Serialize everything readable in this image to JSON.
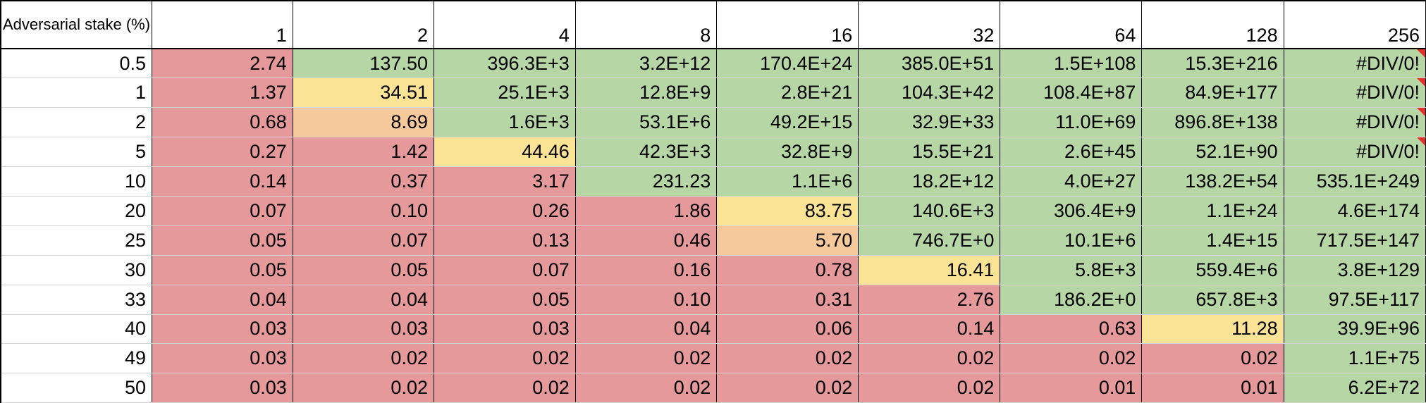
{
  "header": {
    "stake_label": "Adversarial stake (%)",
    "columns": [
      "1",
      "2",
      "4",
      "8",
      "16",
      "32",
      "64",
      "128",
      "256"
    ]
  },
  "colors": {
    "red": "#e5999a",
    "green": "#b7d6a6",
    "yellow": "#fbe396",
    "orange": "#f5c99b",
    "comment_flag": "#e2302b"
  },
  "rows": [
    {
      "stake": "0.5",
      "cells": [
        {
          "text": "2.74",
          "fill": "red"
        },
        {
          "text": "137.50",
          "fill": "green"
        },
        {
          "text": "396.3E+3",
          "fill": "green"
        },
        {
          "text": "3.2E+12",
          "fill": "green"
        },
        {
          "text": "170.4E+24",
          "fill": "green"
        },
        {
          "text": "385.0E+51",
          "fill": "green"
        },
        {
          "text": "1.5E+108",
          "fill": "green"
        },
        {
          "text": "15.3E+216",
          "fill": "green"
        },
        {
          "text": "#DIV/0!",
          "fill": "green",
          "comment": true
        }
      ]
    },
    {
      "stake": "1",
      "cells": [
        {
          "text": "1.37",
          "fill": "red"
        },
        {
          "text": "34.51",
          "fill": "yellow"
        },
        {
          "text": "25.1E+3",
          "fill": "green"
        },
        {
          "text": "12.8E+9",
          "fill": "green"
        },
        {
          "text": "2.8E+21",
          "fill": "green"
        },
        {
          "text": "104.3E+42",
          "fill": "green"
        },
        {
          "text": "108.4E+87",
          "fill": "green"
        },
        {
          "text": "84.9E+177",
          "fill": "green"
        },
        {
          "text": "#DIV/0!",
          "fill": "green",
          "comment": true
        }
      ]
    },
    {
      "stake": "2",
      "cells": [
        {
          "text": "0.68",
          "fill": "red"
        },
        {
          "text": "8.69",
          "fill": "orange"
        },
        {
          "text": "1.6E+3",
          "fill": "green"
        },
        {
          "text": "53.1E+6",
          "fill": "green"
        },
        {
          "text": "49.2E+15",
          "fill": "green"
        },
        {
          "text": "32.9E+33",
          "fill": "green"
        },
        {
          "text": "11.0E+69",
          "fill": "green"
        },
        {
          "text": "896.8E+138",
          "fill": "green"
        },
        {
          "text": "#DIV/0!",
          "fill": "green",
          "comment": true
        }
      ]
    },
    {
      "stake": "5",
      "cells": [
        {
          "text": "0.27",
          "fill": "red"
        },
        {
          "text": "1.42",
          "fill": "red"
        },
        {
          "text": "44.46",
          "fill": "yellow"
        },
        {
          "text": "42.3E+3",
          "fill": "green"
        },
        {
          "text": "32.8E+9",
          "fill": "green"
        },
        {
          "text": "15.5E+21",
          "fill": "green"
        },
        {
          "text": "2.6E+45",
          "fill": "green"
        },
        {
          "text": "52.1E+90",
          "fill": "green"
        },
        {
          "text": "#DIV/0!",
          "fill": "green",
          "comment": true
        }
      ]
    },
    {
      "stake": "10",
      "cells": [
        {
          "text": "0.14",
          "fill": "red"
        },
        {
          "text": "0.37",
          "fill": "red"
        },
        {
          "text": "3.17",
          "fill": "red"
        },
        {
          "text": "231.23",
          "fill": "green"
        },
        {
          "text": "1.1E+6",
          "fill": "green"
        },
        {
          "text": "18.2E+12",
          "fill": "green"
        },
        {
          "text": "4.0E+27",
          "fill": "green"
        },
        {
          "text": "138.2E+54",
          "fill": "green"
        },
        {
          "text": "535.1E+249",
          "fill": "green"
        }
      ]
    },
    {
      "stake": "20",
      "cells": [
        {
          "text": "0.07",
          "fill": "red"
        },
        {
          "text": "0.10",
          "fill": "red"
        },
        {
          "text": "0.26",
          "fill": "red"
        },
        {
          "text": "1.86",
          "fill": "red"
        },
        {
          "text": "83.75",
          "fill": "yellow"
        },
        {
          "text": "140.6E+3",
          "fill": "green"
        },
        {
          "text": "306.4E+9",
          "fill": "green"
        },
        {
          "text": "1.1E+24",
          "fill": "green"
        },
        {
          "text": "4.6E+174",
          "fill": "green"
        }
      ]
    },
    {
      "stake": "25",
      "cells": [
        {
          "text": "0.05",
          "fill": "red"
        },
        {
          "text": "0.07",
          "fill": "red"
        },
        {
          "text": "0.13",
          "fill": "red"
        },
        {
          "text": "0.46",
          "fill": "red"
        },
        {
          "text": "5.70",
          "fill": "orange"
        },
        {
          "text": "746.7E+0",
          "fill": "green"
        },
        {
          "text": "10.1E+6",
          "fill": "green"
        },
        {
          "text": "1.4E+15",
          "fill": "green"
        },
        {
          "text": "717.5E+147",
          "fill": "green"
        }
      ]
    },
    {
      "stake": "30",
      "cells": [
        {
          "text": "0.05",
          "fill": "red"
        },
        {
          "text": "0.05",
          "fill": "red"
        },
        {
          "text": "0.07",
          "fill": "red"
        },
        {
          "text": "0.16",
          "fill": "red"
        },
        {
          "text": "0.78",
          "fill": "red"
        },
        {
          "text": "16.41",
          "fill": "yellow"
        },
        {
          "text": "5.8E+3",
          "fill": "green"
        },
        {
          "text": "559.4E+6",
          "fill": "green"
        },
        {
          "text": "3.8E+129",
          "fill": "green"
        }
      ]
    },
    {
      "stake": "33",
      "cells": [
        {
          "text": "0.04",
          "fill": "red"
        },
        {
          "text": "0.04",
          "fill": "red"
        },
        {
          "text": "0.05",
          "fill": "red"
        },
        {
          "text": "0.10",
          "fill": "red"
        },
        {
          "text": "0.31",
          "fill": "red"
        },
        {
          "text": "2.76",
          "fill": "red"
        },
        {
          "text": "186.2E+0",
          "fill": "green"
        },
        {
          "text": "657.8E+3",
          "fill": "green"
        },
        {
          "text": "97.5E+117",
          "fill": "green"
        }
      ]
    },
    {
      "stake": "40",
      "cells": [
        {
          "text": "0.03",
          "fill": "red"
        },
        {
          "text": "0.03",
          "fill": "red"
        },
        {
          "text": "0.03",
          "fill": "red"
        },
        {
          "text": "0.04",
          "fill": "red"
        },
        {
          "text": "0.06",
          "fill": "red"
        },
        {
          "text": "0.14",
          "fill": "red"
        },
        {
          "text": "0.63",
          "fill": "red"
        },
        {
          "text": "11.28",
          "fill": "yellow"
        },
        {
          "text": "39.9E+96",
          "fill": "green"
        }
      ]
    },
    {
      "stake": "49",
      "cells": [
        {
          "text": "0.03",
          "fill": "red"
        },
        {
          "text": "0.02",
          "fill": "red"
        },
        {
          "text": "0.02",
          "fill": "red"
        },
        {
          "text": "0.02",
          "fill": "red"
        },
        {
          "text": "0.02",
          "fill": "red"
        },
        {
          "text": "0.02",
          "fill": "red"
        },
        {
          "text": "0.02",
          "fill": "red"
        },
        {
          "text": "0.02",
          "fill": "red"
        },
        {
          "text": "1.1E+75",
          "fill": "green"
        }
      ]
    },
    {
      "stake": "50",
      "cells": [
        {
          "text": "0.03",
          "fill": "red"
        },
        {
          "text": "0.02",
          "fill": "red"
        },
        {
          "text": "0.02",
          "fill": "red"
        },
        {
          "text": "0.02",
          "fill": "red"
        },
        {
          "text": "0.02",
          "fill": "red"
        },
        {
          "text": "0.02",
          "fill": "red"
        },
        {
          "text": "0.01",
          "fill": "red"
        },
        {
          "text": "0.01",
          "fill": "red"
        },
        {
          "text": "6.2E+72",
          "fill": "green"
        }
      ]
    }
  ]
}
